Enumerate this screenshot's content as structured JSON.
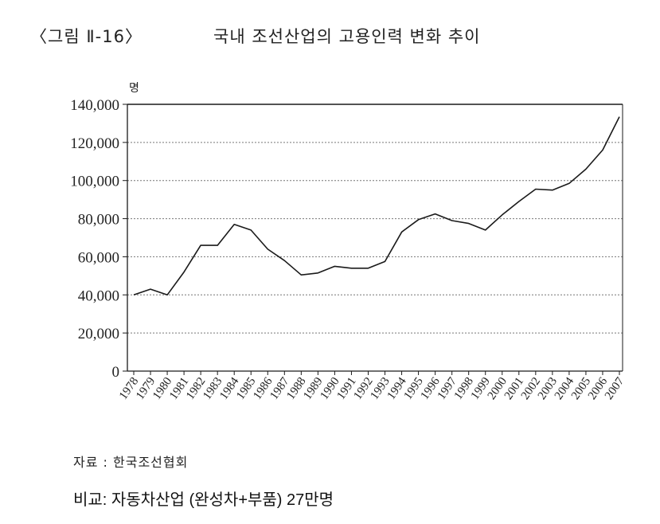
{
  "header": {
    "figure_label": "〈그림 Ⅱ-16〉",
    "title": "국내 조선산업의 고용인력 변화 추이"
  },
  "footer": {
    "source": "자료 : 한국조선협회",
    "note": "비교: 자동차산업 (완성차+부품) 27만명"
  },
  "chart_data": {
    "type": "line",
    "title": "국내 조선산업의 고용인력 변화 추이",
    "xlabel": "",
    "ylabel": "명",
    "ylim": [
      0,
      140000
    ],
    "y_ticks": [
      0,
      20000,
      40000,
      60000,
      80000,
      100000,
      120000,
      140000
    ],
    "y_tick_labels": [
      "0",
      "20,000",
      "40,000",
      "60,000",
      "80,000",
      "100,000",
      "120,000",
      "140,000"
    ],
    "grid": true,
    "categories": [
      "1978",
      "1979",
      "1980",
      "1981",
      "1982",
      "1983",
      "1984",
      "1985",
      "1986",
      "1987",
      "1988",
      "1989",
      "1990",
      "1991",
      "1992",
      "1993",
      "1994",
      "1995",
      "1996",
      "1997",
      "1998",
      "1999",
      "2000",
      "2001",
      "2002",
      "2003",
      "2004",
      "2005",
      "2006",
      "2007"
    ],
    "series": [
      {
        "values": [
          40000,
          43000,
          40000,
          52000,
          66000,
          66000,
          77000,
          74000,
          64000,
          58000,
          50500,
          51500,
          55000,
          54000,
          54000,
          57500,
          73000,
          79500,
          82500,
          79000,
          77500,
          74000,
          82000,
          89000,
          95500,
          95000,
          98500,
          106000,
          116000,
          133500
        ]
      }
    ],
    "colors": {
      "line": "#1a1a1a",
      "grid": "#777777",
      "axis": "#1a1a1a"
    }
  }
}
